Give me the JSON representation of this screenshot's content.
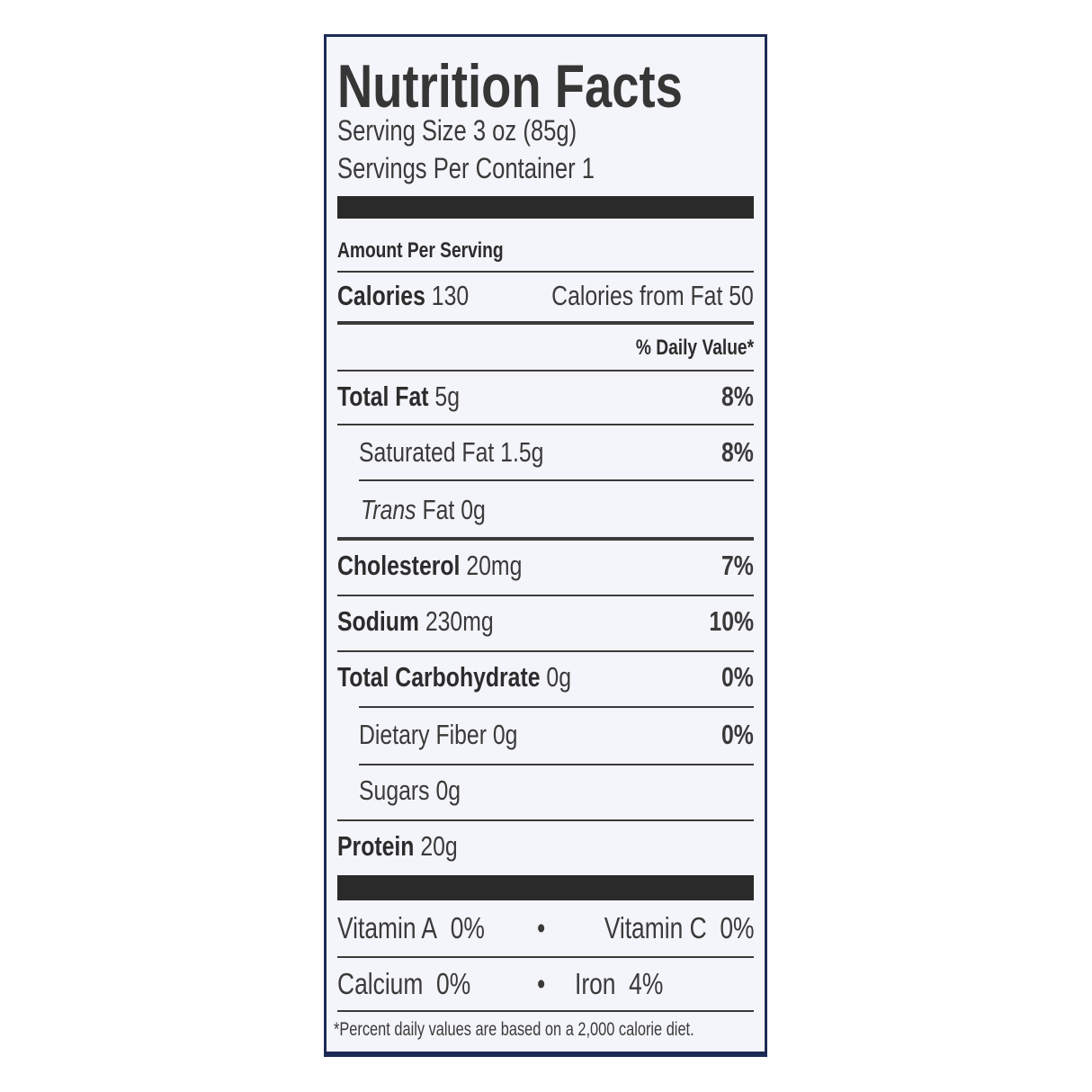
{
  "title": "Nutrition Facts",
  "serving_size": "Serving Size 3 oz (85g)",
  "servings_per_container": "Servings Per Container 1",
  "amount_per_serving": "Amount Per Serving",
  "calories": {
    "label": "Calories",
    "value": "130",
    "from_fat_label": "Calories from Fat",
    "from_fat_value": "50"
  },
  "daily_value_header": "% Daily Value*",
  "nutrients": [
    {
      "name": "Total Fat",
      "amount": "5g",
      "dv": "8%"
    },
    {
      "name": "Saturated Fat",
      "amount": "1.5g",
      "dv": "8%"
    },
    {
      "name": "Trans",
      "name_suffix": "Fat",
      "amount": "0g",
      "dv": ""
    },
    {
      "name": "Cholesterol",
      "amount": "20mg",
      "dv": "7%"
    },
    {
      "name": "Sodium",
      "amount": "230mg",
      "dv": "10%"
    },
    {
      "name": "Total Carbohydrate",
      "amount": "0g",
      "dv": "0%"
    },
    {
      "name": "Dietary Fiber",
      "amount": "0g",
      "dv": "0%"
    },
    {
      "name": "Sugars",
      "amount": "0g",
      "dv": ""
    },
    {
      "name": "Protein",
      "amount": "20g",
      "dv": ""
    }
  ],
  "vitamins": [
    {
      "name": "Vitamin A",
      "dv": "0%"
    },
    {
      "name": "Vitamin C",
      "dv": "0%"
    },
    {
      "name": "Calcium",
      "dv": "0%"
    },
    {
      "name": "Iron",
      "dv": "4%"
    }
  ],
  "bullet": "•",
  "footnote": "*Percent daily values are based on a 2,000 calorie diet.",
  "colors": {
    "border": "#1d2a55",
    "text": "#3a3a3a",
    "background": "#f4f5fa"
  }
}
